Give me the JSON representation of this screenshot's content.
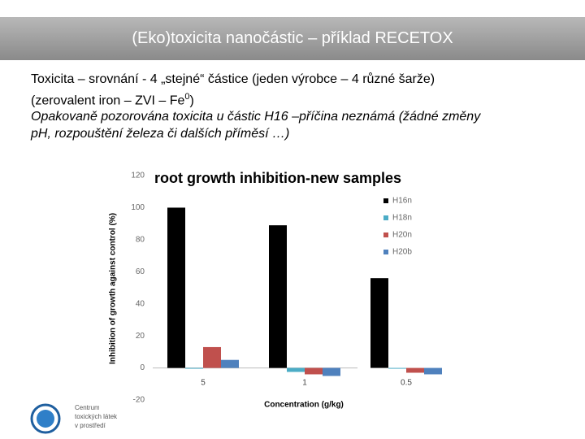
{
  "slide": {
    "title": "(Eko)toxicita nanočástic – příklad RECETOX",
    "line1": "Toxicita – srovnání - 4 „stejné“ částice (jeden výrobce – 4 různé šarže)",
    "line2": "(zerovalent iron – ZVI – Fe",
    "line2_sup": "0",
    "line2_end": ")",
    "line3": "Opakovaně pozorována toxicita u částic H16 –příčina neznámá (žádné změny",
    "line4": "pH, rozpouštění železa či dalších příměsí …)"
  },
  "logo": {
    "lines": [
      "Centrum",
      "toxických látek",
      "v prostředí"
    ]
  },
  "chart_data": {
    "type": "bar",
    "title": "root growth inhibition-new samples",
    "y_label": "Inhibition of growth against control (%)",
    "x_label": "Concentration (g/kg)",
    "categories": [
      "5",
      "1",
      "0.5"
    ],
    "series": [
      {
        "name": "H16n",
        "color": "#000000",
        "values": [
          100,
          89,
          56
        ]
      },
      {
        "name": "H18n",
        "color": "#4bacc6",
        "values": [
          -0.5,
          -2.5,
          -0.5
        ]
      },
      {
        "name": "H20n",
        "color": "#c0504d",
        "values": [
          13,
          -4,
          -3
        ]
      },
      {
        "name": "H20b",
        "color": "#4f81bd",
        "values": [
          5,
          -5,
          -4
        ]
      }
    ],
    "ylim": [
      -20,
      120
    ],
    "yticks": [
      -20,
      0,
      20,
      40,
      60,
      80,
      100,
      120
    ],
    "grid": false,
    "legend": "right"
  }
}
